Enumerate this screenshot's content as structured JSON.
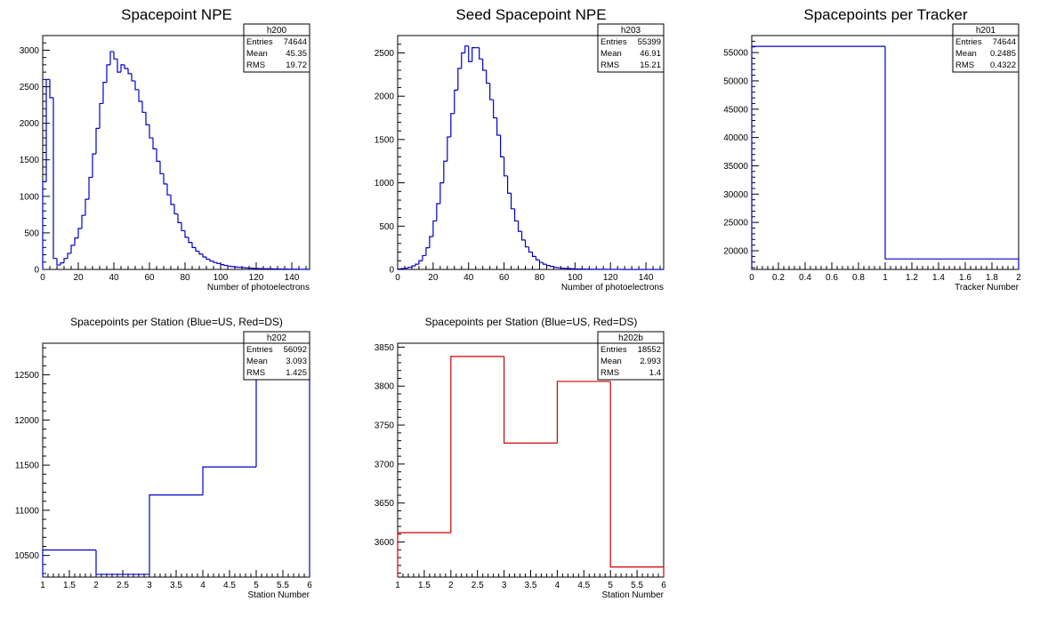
{
  "chart_data": [
    {
      "id": "h200",
      "type": "histogram",
      "title": "Spacepoint NPE",
      "xlabel": "Number of photoelectrons",
      "ylabel": "",
      "xlim": [
        0,
        150
      ],
      "ylim": [
        0,
        3200
      ],
      "xticks": [
        0,
        20,
        40,
        60,
        80,
        100,
        120,
        140
      ],
      "yticks": [
        0,
        500,
        1000,
        1500,
        2000,
        2500,
        3000
      ],
      "color": "#0000cc",
      "bin_edges": [
        0,
        2,
        4,
        6,
        8,
        10,
        12,
        14,
        16,
        18,
        20,
        22,
        24,
        26,
        28,
        30,
        32,
        34,
        36,
        38,
        40,
        42,
        44,
        46,
        48,
        50,
        52,
        54,
        56,
        58,
        60,
        62,
        64,
        66,
        68,
        70,
        72,
        74,
        76,
        78,
        80,
        82,
        84,
        86,
        88,
        90,
        92,
        94,
        96,
        98,
        100,
        102,
        104,
        106,
        108,
        110,
        112,
        114,
        116,
        118,
        120,
        122,
        124,
        126,
        128,
        130,
        132,
        134,
        136,
        138,
        140,
        142,
        144,
        146,
        148,
        150
      ],
      "values": [
        1200,
        2600,
        2350,
        150,
        60,
        90,
        150,
        220,
        330,
        430,
        560,
        740,
        960,
        1260,
        1580,
        1930,
        2270,
        2560,
        2800,
        2980,
        2880,
        2700,
        2800,
        2750,
        2680,
        2580,
        2460,
        2300,
        2150,
        1980,
        1800,
        1650,
        1480,
        1310,
        1170,
        1020,
        890,
        760,
        640,
        530,
        440,
        370,
        300,
        250,
        210,
        170,
        140,
        115,
        95,
        80,
        65,
        55,
        45,
        38,
        32,
        28,
        24,
        20,
        18,
        15,
        13,
        11,
        10,
        9,
        8,
        7,
        6,
        5,
        5,
        4,
        3,
        3,
        2,
        2,
        2
      ],
      "stats": {
        "name": "h200",
        "rows": [
          {
            "label": "Entries",
            "value": "74644"
          },
          {
            "label": "Mean",
            "value": "45.35"
          },
          {
            "label": "RMS",
            "value": "19.72"
          }
        ]
      }
    },
    {
      "id": "h203",
      "type": "histogram",
      "title": "Seed Spacepoint NPE",
      "xlabel": "Number of photoelectrons",
      "ylabel": "",
      "xlim": [
        0,
        150
      ],
      "ylim": [
        0,
        2700
      ],
      "xticks": [
        0,
        20,
        40,
        60,
        80,
        100,
        120,
        140
      ],
      "yticks": [
        0,
        500,
        1000,
        1500,
        2000,
        2500
      ],
      "color": "#0000cc",
      "bin_edges": [
        0,
        2,
        4,
        6,
        8,
        10,
        12,
        14,
        16,
        18,
        20,
        22,
        24,
        26,
        28,
        30,
        32,
        34,
        36,
        38,
        40,
        42,
        44,
        46,
        48,
        50,
        52,
        54,
        56,
        58,
        60,
        62,
        64,
        66,
        68,
        70,
        72,
        74,
        76,
        78,
        80,
        82,
        84,
        86,
        88,
        90,
        92,
        94,
        96,
        98,
        100,
        102,
        104,
        106,
        108,
        110,
        112,
        114,
        116,
        118,
        120,
        122,
        124,
        126,
        128,
        130,
        132,
        134,
        136,
        138,
        140,
        142,
        144,
        146,
        148,
        150
      ],
      "values": [
        5,
        10,
        15,
        25,
        40,
        60,
        100,
        160,
        250,
        380,
        560,
        760,
        1000,
        1250,
        1530,
        1800,
        2070,
        2320,
        2500,
        2580,
        2400,
        2560,
        2560,
        2430,
        2300,
        2150,
        1960,
        1750,
        1550,
        1300,
        1080,
        880,
        700,
        560,
        440,
        340,
        260,
        200,
        150,
        110,
        80,
        60,
        45,
        35,
        25,
        20,
        15,
        12,
        10,
        8,
        6,
        5,
        4,
        3,
        3,
        2,
        2,
        2,
        1,
        1,
        1,
        1,
        1,
        0,
        0,
        0,
        0,
        0,
        0,
        0,
        0,
        0,
        0,
        0,
        0
      ],
      "stats": {
        "name": "h203",
        "rows": [
          {
            "label": "Entries",
            "value": "55399"
          },
          {
            "label": "Mean",
            "value": "46.91"
          },
          {
            "label": "RMS",
            "value": "15.21"
          }
        ]
      }
    },
    {
      "id": "h201",
      "type": "histogram",
      "title": "Spacepoints per Tracker",
      "xlabel": "Tracker Number",
      "ylabel": "",
      "xlim": [
        0,
        2
      ],
      "ylim": [
        16700,
        58000
      ],
      "xticks": [
        0,
        0.2,
        0.4,
        0.6,
        0.8,
        1,
        1.2,
        1.4,
        1.6,
        1.8,
        2
      ],
      "yticks": [
        20000,
        25000,
        30000,
        35000,
        40000,
        45000,
        50000,
        55000
      ],
      "color": "#0000cc",
      "bin_edges": [
        0,
        1,
        2
      ],
      "values": [
        56092,
        18552
      ],
      "stats": {
        "name": "h201",
        "rows": [
          {
            "label": "Entries",
            "value": "74644"
          },
          {
            "label": "Mean",
            "value": "0.2485"
          },
          {
            "label": "RMS",
            "value": "0.4322"
          }
        ]
      }
    },
    {
      "id": "h202",
      "type": "histogram",
      "title": "Spacepoints per Station (Blue=US, Red=DS)",
      "xlabel": "Station Number",
      "ylabel": "",
      "xlim": [
        1,
        6
      ],
      "ylim": [
        10260,
        12850
      ],
      "xticks": [
        1,
        1.5,
        2,
        2.5,
        3,
        3.5,
        4,
        4.5,
        5,
        5.5,
        6
      ],
      "yticks": [
        10500,
        11000,
        11500,
        12000,
        12500
      ],
      "color": "#0000cc",
      "bin_edges": [
        1,
        2,
        3,
        4,
        5,
        6
      ],
      "values": [
        10560,
        10290,
        11170,
        11480,
        12580
      ],
      "stats": {
        "name": "h202",
        "rows": [
          {
            "label": "Entries",
            "value": "56092"
          },
          {
            "label": "Mean",
            "value": "3.093"
          },
          {
            "label": "RMS",
            "value": "1.425"
          }
        ]
      }
    },
    {
      "id": "h202b",
      "type": "histogram",
      "title": "Spacepoints per Station (Blue=US, Red=DS)",
      "xlabel": "Station Number",
      "ylabel": "",
      "xlim": [
        1,
        6
      ],
      "ylim": [
        3555,
        3855
      ],
      "xticks": [
        1,
        1.5,
        2,
        2.5,
        3,
        3.5,
        4,
        4.5,
        5,
        5.5,
        6
      ],
      "yticks": [
        3600,
        3650,
        3700,
        3750,
        3800,
        3850
      ],
      "color": "#cc0000",
      "bin_edges": [
        1,
        2,
        3,
        4,
        5,
        6
      ],
      "values": [
        3612,
        3838,
        3727,
        3806,
        3568
      ],
      "stats": {
        "name": "h202b",
        "rows": [
          {
            "label": "Entries",
            "value": "18552"
          },
          {
            "label": "Mean",
            "value": "2.993"
          },
          {
            "label": "RMS",
            "value": "1.4"
          }
        ]
      }
    }
  ]
}
